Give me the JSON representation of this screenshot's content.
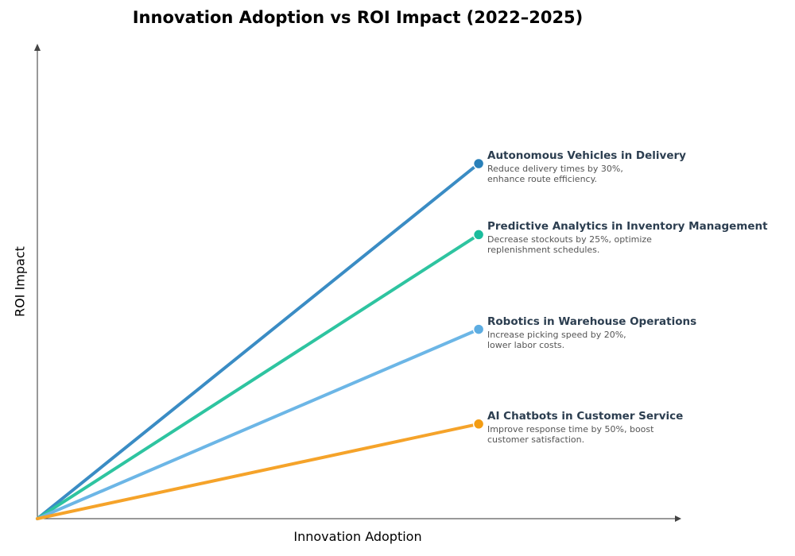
{
  "chart_data": {
    "type": "line",
    "title": "Innovation Adoption vs ROI Impact (2022–2025)",
    "xlabel": "Innovation Adoption",
    "ylabel": "ROI Impact",
    "xlim": [
      0,
      1
    ],
    "ylim": [
      0,
      1
    ],
    "grid": false,
    "legend": "none",
    "series": [
      {
        "name": "Autonomous Vehicles in Delivery",
        "description": "Reduce delivery times by 30%,\nenhance route efficiency.",
        "x": [
          0,
          0.7
        ],
        "y": [
          0,
          0.75
        ],
        "color": "#3a8cc4",
        "marker_color": "#2980b9"
      },
      {
        "name": "Predictive Analytics in Inventory Management",
        "description": "Decrease stockouts by 25%, optimize\nreplenishment schedules.",
        "x": [
          0,
          0.7
        ],
        "y": [
          0,
          0.6
        ],
        "color": "#2ec4a0",
        "marker_color": "#1abc9c"
      },
      {
        "name": "Robotics in Warehouse Operations",
        "description": "Increase picking speed by 20%,\nlower labor costs.",
        "x": [
          0,
          0.7
        ],
        "y": [
          0,
          0.4
        ],
        "color": "#6cb6e6",
        "marker_color": "#5dade2"
      },
      {
        "name": "AI Chatbots in Customer Service",
        "description": "Improve response time by 50%, boost\ncustomer satisfaction.",
        "x": [
          0,
          0.7
        ],
        "y": [
          0,
          0.2
        ],
        "color": "#f5a32a",
        "marker_color": "#f39c12"
      }
    ]
  }
}
